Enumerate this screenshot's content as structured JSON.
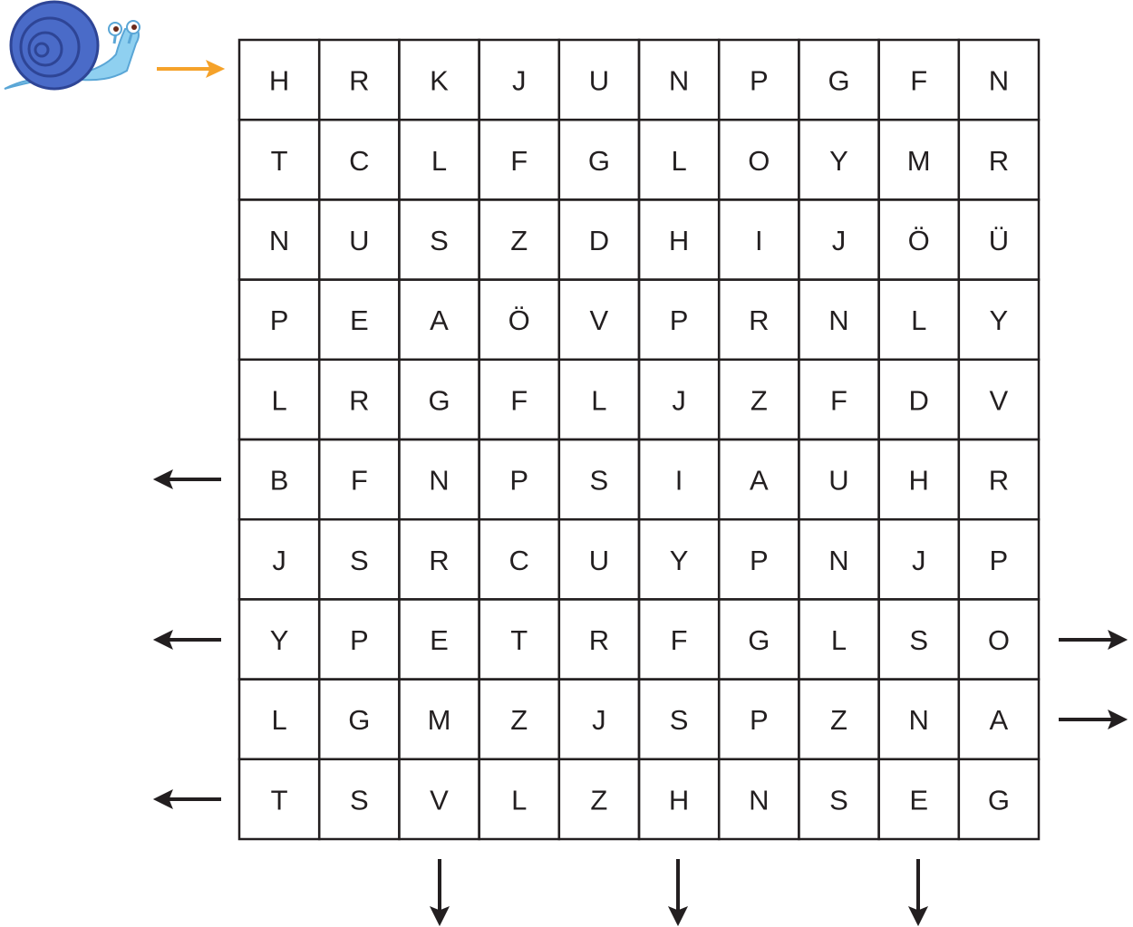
{
  "grid": {
    "rows": [
      [
        "H",
        "R",
        "K",
        "J",
        "U",
        "N",
        "P",
        "G",
        "F",
        "N"
      ],
      [
        "T",
        "C",
        "L",
        "F",
        "G",
        "L",
        "O",
        "Y",
        "M",
        "R"
      ],
      [
        "N",
        "U",
        "S",
        "Z",
        "D",
        "H",
        "I",
        "J",
        "Ö",
        "Ü"
      ],
      [
        "P",
        "E",
        "A",
        "Ö",
        "V",
        "P",
        "R",
        "N",
        "L",
        "Y"
      ],
      [
        "L",
        "R",
        "G",
        "F",
        "L",
        "J",
        "Z",
        "F",
        "D",
        "V"
      ],
      [
        "B",
        "F",
        "N",
        "P",
        "S",
        "I",
        "A",
        "U",
        "H",
        "R"
      ],
      [
        "J",
        "S",
        "R",
        "C",
        "U",
        "Y",
        "P",
        "N",
        "J",
        "P"
      ],
      [
        "Y",
        "P",
        "E",
        "T",
        "R",
        "F",
        "G",
        "L",
        "S",
        "O"
      ],
      [
        "L",
        "G",
        "M",
        "Z",
        "J",
        "S",
        "P",
        "Z",
        "N",
        "A"
      ],
      [
        "T",
        "S",
        "V",
        "L",
        "Z",
        "H",
        "N",
        "S",
        "E",
        "G"
      ]
    ]
  }
}
